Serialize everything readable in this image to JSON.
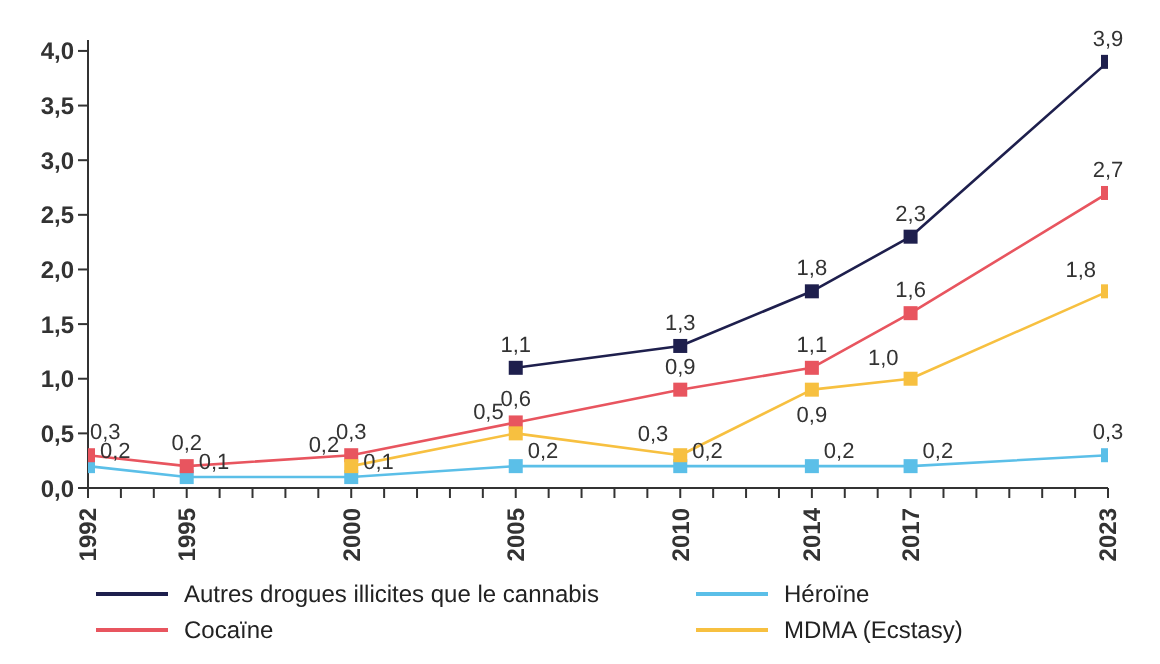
{
  "chart_data": {
    "type": "line",
    "x": [
      1992,
      1995,
      2000,
      2005,
      2010,
      2014,
      2017,
      2023
    ],
    "series": [
      {
        "name": "Autres drogues illicites que le cannabis",
        "color": "#1e1f4d",
        "values": [
          null,
          null,
          null,
          1.1,
          1.3,
          1.8,
          2.3,
          3.9
        ],
        "value_labels": [
          null,
          null,
          null,
          "1,1",
          "1,3",
          "1,8",
          "2,3",
          "3,9"
        ]
      },
      {
        "name": "Héroïne",
        "color": "#5bbfe8",
        "values": [
          0.2,
          0.1,
          0.1,
          0.2,
          0.2,
          0.2,
          0.2,
          0.3
        ],
        "value_labels": [
          "0,2",
          "0,1",
          "0,1",
          "0,2",
          "0,2",
          "0,2",
          "0,2",
          "0,3"
        ]
      },
      {
        "name": "Cocaïne",
        "color": "#e8555f",
        "values": [
          0.3,
          0.2,
          0.3,
          0.6,
          0.9,
          1.1,
          1.6,
          2.7
        ],
        "value_labels": [
          "0,3",
          "0,2",
          "0,3",
          "0,6",
          "0,9",
          "1,1",
          "1,6",
          "2,7"
        ]
      },
      {
        "name": "MDMA (Ecstasy)",
        "color": "#f7c040",
        "values": [
          null,
          null,
          0.2,
          0.5,
          0.3,
          0.9,
          1.0,
          1.8
        ],
        "value_labels": [
          null,
          null,
          "0,2",
          "0,5",
          "0,3",
          "0,9",
          "1,0",
          "1,8"
        ]
      }
    ],
    "xlim": [
      1992,
      2023
    ],
    "xticks": [
      1992,
      {
        "value": 1993,
        "label": null
      },
      {
        "value": 1994,
        "label": null
      },
      1995,
      {
        "value": 1996,
        "label": null
      },
      {
        "value": 1997,
        "label": null
      },
      {
        "value": 1998,
        "label": null
      },
      {
        "value": 1999,
        "label": null
      },
      2000,
      {
        "value": 2001,
        "label": null
      },
      {
        "value": 2002,
        "label": null
      },
      {
        "value": 2003,
        "label": null
      },
      {
        "value": 2004,
        "label": null
      },
      2005,
      {
        "value": 2006,
        "label": null
      },
      {
        "value": 2007,
        "label": null
      },
      {
        "value": 2008,
        "label": null
      },
      {
        "value": 2009,
        "label": null
      },
      2010,
      {
        "value": 2011,
        "label": null
      },
      {
        "value": 2012,
        "label": null
      },
      {
        "value": 2013,
        "label": null
      },
      2014,
      {
        "value": 2015,
        "label": null
      },
      {
        "value": 2016,
        "label": null
      },
      2017,
      {
        "value": 2018,
        "label": null
      },
      {
        "value": 2019,
        "label": null
      },
      {
        "value": 2020,
        "label": null
      },
      {
        "value": 2021,
        "label": null
      },
      {
        "value": 2022,
        "label": null
      },
      2023
    ],
    "ylim": [
      0,
      4.1
    ],
    "yticks": [
      {
        "value": 0,
        "label": "0,0"
      },
      {
        "value": 0.5,
        "label": "0,5"
      },
      {
        "value": 1,
        "label": "1,0"
      },
      {
        "value": 1.5,
        "label": "1,5"
      },
      {
        "value": 2,
        "label": "2,0"
      },
      {
        "value": 2.5,
        "label": "2,5"
      },
      {
        "value": 3,
        "label": "3,0"
      },
      {
        "value": 3.5,
        "label": "3,5"
      },
      {
        "value": 4,
        "label": "4,0"
      }
    ],
    "grid": false,
    "legend": "bottom",
    "marker": "square",
    "line_style": "solid"
  }
}
